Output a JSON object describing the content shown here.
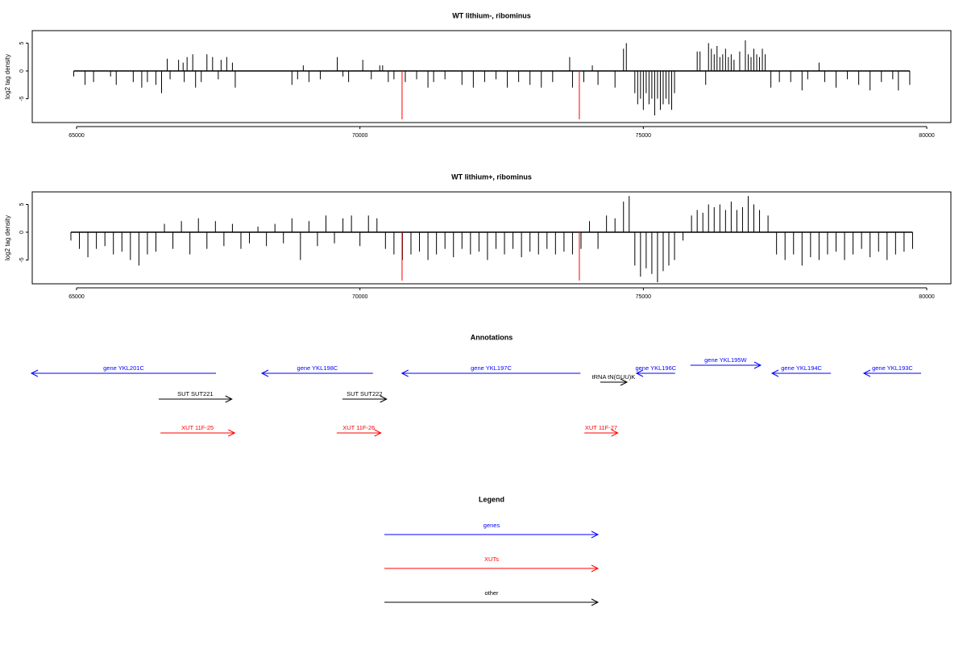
{
  "chart_data": [
    {
      "type": "spike",
      "title": "WT lithium-, ribominus",
      "y_label": "log2 tag density",
      "xlim": [
        64218,
        80426
      ],
      "ylim": [
        -9.28,
        7.25
      ],
      "xticks": [
        65000,
        70000,
        75000,
        80000
      ],
      "yticks": [
        -5,
        0,
        5
      ],
      "series": [
        {
          "color": "#000000",
          "x": [
            64950,
            65150,
            65300,
            65600,
            65700,
            66000,
            66150,
            66250,
            66400,
            66500,
            66650,
            66900,
            67100,
            67200,
            67500,
            67800,
            66600,
            66800,
            66880,
            66950,
            67050,
            67300,
            67400,
            67550,
            67650,
            67750,
            68800,
            68900,
            69000,
            69100,
            69300,
            69600,
            69700,
            69800,
            70050,
            70200,
            70350,
            70400,
            70500,
            70600,
            70800,
            71000,
            71200,
            71300,
            71500,
            71800,
            72000,
            72200,
            72400,
            72600,
            72800,
            73000,
            73200,
            73400,
            73700,
            73750,
            73950,
            74100,
            74200,
            74500,
            74650,
            74700,
            74850,
            74900,
            74950,
            75000,
            75050,
            75100,
            75150,
            75200,
            75250,
            75300,
            75350,
            75400,
            75450,
            75500,
            75550,
            75950,
            76000,
            76100,
            76150,
            76200,
            76250,
            76300,
            76350,
            76400,
            76450,
            76500,
            76550,
            76600,
            76700,
            76800,
            76850,
            76900,
            76950,
            77000,
            77050,
            77100,
            77150,
            77250,
            77400,
            77600,
            77800,
            77900,
            78100,
            78200,
            78400,
            78600,
            78800,
            79000,
            79200,
            79400,
            79500,
            79700
          ],
          "values": [
            -1,
            -2.5,
            -2,
            -1,
            -2.5,
            -2,
            -3,
            -2,
            -2.5,
            -4,
            -1.5,
            -2,
            -3,
            -2,
            -1.5,
            -3,
            2.2,
            2,
            1.5,
            2.5,
            3,
            3,
            2.5,
            2,
            2.5,
            1.5,
            -2.5,
            -1.5,
            1,
            -2,
            -1.5,
            2.5,
            -1,
            -2,
            2,
            -1.5,
            1,
            1,
            -2,
            -1.5,
            -2,
            -1.5,
            -3,
            -2,
            -1.5,
            -2.5,
            -3,
            -2,
            -1.5,
            -3,
            -2,
            -2.5,
            -3,
            -2,
            2.5,
            -3,
            -2,
            1,
            -2.5,
            -3,
            4,
            5,
            -4,
            -6,
            -5,
            -7,
            -4,
            -6,
            -5,
            -8,
            -5,
            -7,
            -6,
            -5,
            -6,
            -7,
            -4,
            3.5,
            3.5,
            -2.5,
            5,
            4,
            3,
            4.5,
            2.5,
            3,
            4,
            2.5,
            3,
            2,
            3.5,
            5.5,
            3,
            2.5,
            4,
            3,
            2.5,
            4,
            3,
            -3,
            -2,
            -2,
            -3.5,
            -1.5,
            1.5,
            -2,
            -3,
            -1.5,
            -2.5,
            -3.5,
            -2,
            -1.5,
            -3.5,
            -2.5
          ]
        },
        {
          "color": "#ff0000",
          "x": [
            70743,
            73871
          ],
          "values": [
            -8.7,
            -8.7
          ]
        }
      ]
    },
    {
      "type": "spike",
      "title": "WT lithium+, ribominus",
      "y_label": "log2 tag density",
      "xlim": [
        64218,
        80426
      ],
      "ylim": [
        -9.28,
        7.25
      ],
      "xticks": [
        65000,
        70000,
        75000,
        80000
      ],
      "yticks": [
        -5,
        0,
        5
      ],
      "series": [
        {
          "color": "#000000",
          "x": [
            64900,
            65050,
            65200,
            65350,
            65500,
            65650,
            65800,
            65950,
            66100,
            66250,
            66400,
            66550,
            66700,
            66850,
            67000,
            67150,
            67300,
            67450,
            67600,
            67750,
            67900,
            68050,
            68200,
            68350,
            68500,
            68650,
            68800,
            68950,
            69100,
            69250,
            69400,
            69550,
            69700,
            69850,
            70000,
            70150,
            70300,
            70450,
            70600,
            70750,
            70900,
            71050,
            71200,
            71350,
            71500,
            71650,
            71800,
            71950,
            72100,
            72250,
            72400,
            72550,
            72700,
            72850,
            73000,
            73150,
            73300,
            73450,
            73600,
            73750,
            73900,
            74050,
            74200,
            74350,
            74500,
            74650,
            74750,
            74850,
            74950,
            75050,
            75150,
            75250,
            75350,
            75450,
            75550,
            75700,
            75850,
            75950,
            76050,
            76150,
            76250,
            76350,
            76450,
            76550,
            76650,
            76750,
            76850,
            76950,
            77050,
            77200,
            77350,
            77500,
            77650,
            77800,
            77950,
            78100,
            78250,
            78400,
            78550,
            78700,
            78850,
            79000,
            79150,
            79300,
            79450,
            79600,
            79750
          ],
          "values": [
            -1.5,
            -3,
            -4.5,
            -3,
            -2.5,
            -4,
            -3.5,
            -5,
            -6,
            -4,
            -3.5,
            1.5,
            -3,
            2,
            -4,
            2.5,
            -3,
            2,
            -2.5,
            1.5,
            -3,
            -2,
            1,
            -2.5,
            1.5,
            -2,
            2.5,
            -5,
            2,
            -2.5,
            3,
            -2,
            2.5,
            3,
            -2.5,
            3,
            2.5,
            -3,
            -4,
            -5,
            -4,
            -3.5,
            -5,
            -4,
            -3,
            -4.5,
            -3,
            -4,
            -3.5,
            -5,
            -3,
            -4,
            -3,
            -4.5,
            -3.5,
            -4,
            -3,
            -4,
            -3.5,
            -4,
            -3,
            2,
            -3,
            3,
            2.5,
            5.5,
            6.5,
            -6,
            -8,
            -6.5,
            -7.5,
            -9,
            -7,
            -6,
            -5,
            -1.5,
            3,
            4,
            3.5,
            5,
            4.5,
            5,
            4,
            5.5,
            4,
            4.5,
            6.5,
            5,
            4,
            3,
            -4,
            -5,
            -4,
            -6,
            -4.5,
            -5,
            -4,
            -3.5,
            -5,
            -4,
            -3,
            -4.5,
            -3.5,
            -5,
            -4,
            -3.5,
            -3
          ]
        },
        {
          "color": "#ff0000",
          "x": [
            70743,
            73871
          ],
          "values": [
            -8.7,
            -8.7
          ]
        }
      ]
    }
  ],
  "annotations": {
    "title": "Annotations",
    "tracks": [
      [
        {
          "label": "gene YKL201C",
          "start": 64200,
          "end": 67460,
          "strand": "-",
          "color": "#0000ff"
        },
        {
          "label": "gene YKL198C",
          "start": 68270,
          "end": 70230,
          "strand": "-",
          "color": "#0000ff"
        },
        {
          "label": "gene YKL197C",
          "start": 70740,
          "end": 73890,
          "strand": "-",
          "color": "#0000ff"
        },
        {
          "label": "tRNA tN(GUU)K",
          "start": 74240,
          "end": 74710,
          "strand": "+",
          "color": "#000000"
        },
        {
          "label": "gene YKL196C",
          "start": 74880,
          "end": 75560,
          "strand": "-",
          "color": "#0000ff"
        },
        {
          "label": "gene YKL195W",
          "start": 75830,
          "end": 77070,
          "strand": "+",
          "color": "#0000ff"
        },
        {
          "label": "gene YKL194C",
          "start": 77270,
          "end": 78310,
          "strand": "-",
          "color": "#0000ff"
        },
        {
          "label": "gene YKL193C",
          "start": 78890,
          "end": 79900,
          "strand": "-",
          "color": "#0000ff"
        }
      ],
      [
        {
          "label": "SUT SUT221",
          "start": 66450,
          "end": 67740,
          "strand": "+",
          "color": "#000000"
        },
        {
          "label": "SUT SUT222",
          "start": 69690,
          "end": 70470,
          "strand": "+",
          "color": "#000000"
        }
      ],
      [
        {
          "label": "XUT 11F-25",
          "start": 66480,
          "end": 67790,
          "strand": "+",
          "color": "#ff0000"
        },
        {
          "label": "XUT 11F-26",
          "start": 69590,
          "end": 70370,
          "strand": "+",
          "color": "#ff0000"
        },
        {
          "label": "XUT 11F-27",
          "start": 73960,
          "end": 74550,
          "strand": "+",
          "color": "#ff0000"
        }
      ]
    ]
  },
  "legend": {
    "title": "Legend",
    "items": [
      {
        "label": "genes",
        "color": "#0000ff"
      },
      {
        "label": "XUTs",
        "color": "#ff0000"
      },
      {
        "label": "other",
        "color": "#000000"
      }
    ]
  }
}
